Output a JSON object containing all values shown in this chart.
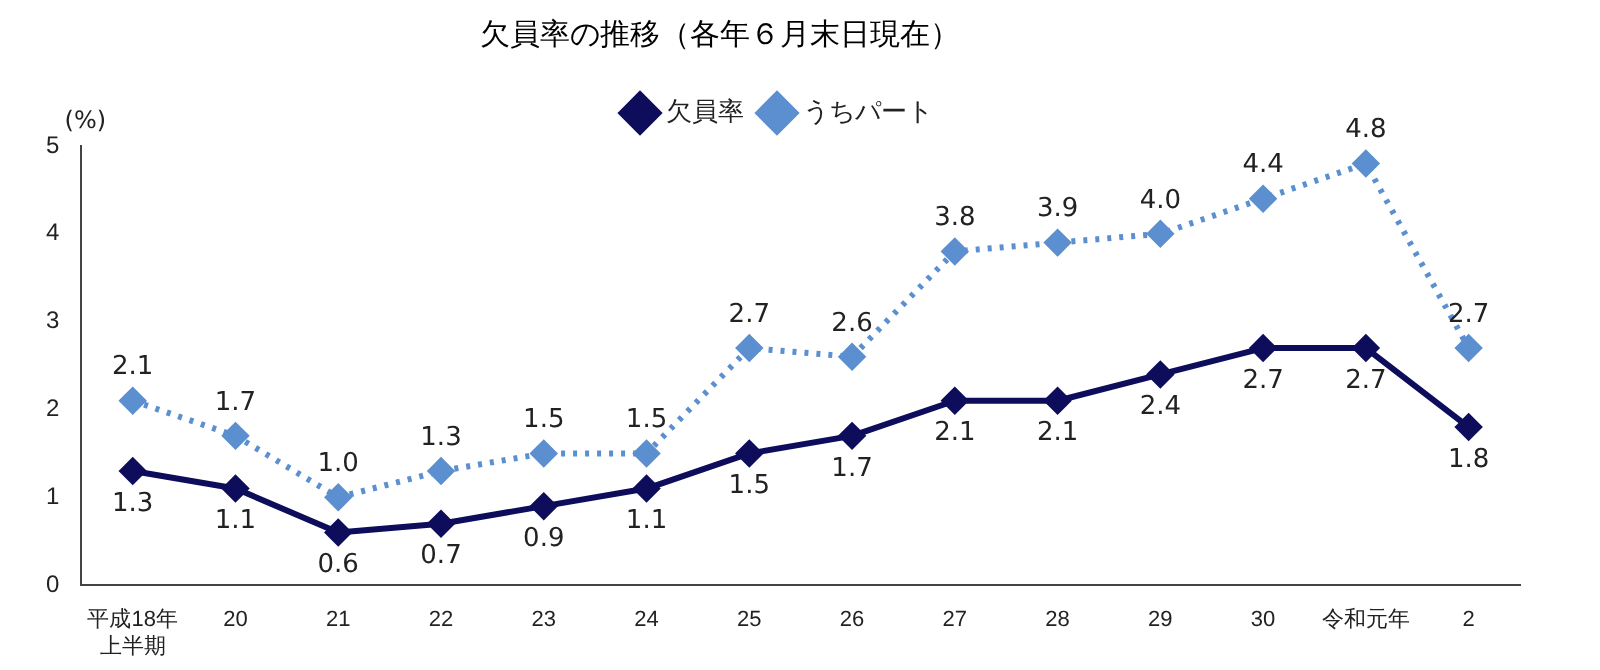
{
  "chart_data": {
    "type": "line",
    "title": "欠員率の推移（各年６月末日現在）",
    "ylabel": "(%)",
    "categories": [
      "平成18年上半期",
      "20",
      "21",
      "22",
      "23",
      "24",
      "25",
      "26",
      "27",
      "28",
      "29",
      "30",
      "令和元年",
      "2"
    ],
    "series": [
      {
        "name": "欠員率",
        "color": "#0d0d5c",
        "line_style": "solid",
        "values": [
          1.3,
          1.1,
          0.6,
          0.7,
          0.9,
          1.1,
          1.5,
          1.7,
          2.1,
          2.1,
          2.4,
          2.7,
          2.7,
          1.8
        ],
        "value_labels": [
          "1.3",
          "1.1",
          "0.6",
          "0.7",
          "0.9",
          "1.1",
          "1.5",
          "1.7",
          "2.1",
          "2.1",
          "2.4",
          "2.7",
          "2.7",
          "1.8"
        ]
      },
      {
        "name": "うちパート",
        "color": "#5b8fd0",
        "line_style": "dotted",
        "values": [
          2.1,
          1.7,
          1.0,
          1.3,
          1.5,
          1.5,
          2.7,
          2.6,
          3.8,
          3.9,
          4.0,
          4.4,
          4.8,
          2.7
        ],
        "value_labels": [
          "2.1",
          "1.7",
          "1.0",
          "1.3",
          "1.5",
          "1.5",
          "2.7",
          "2.6",
          "3.8",
          "3.9",
          "4.0",
          "4.4",
          "4.8",
          "2.7"
        ]
      }
    ],
    "ylim": [
      0,
      5
    ],
    "yticks": [
      0,
      1,
      2,
      3,
      4,
      5
    ],
    "grid": false,
    "legend": "top",
    "marker": "diamond"
  }
}
